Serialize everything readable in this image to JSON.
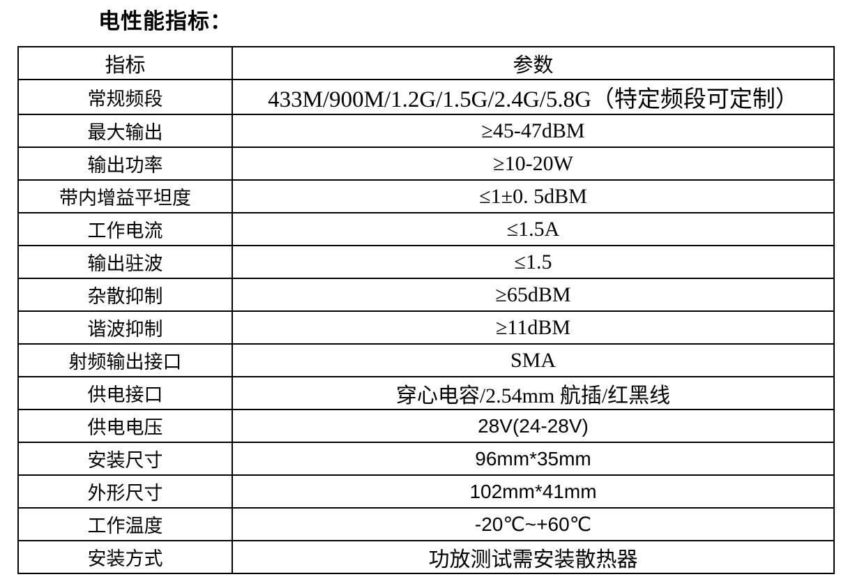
{
  "page": {
    "title": "电性能指标："
  },
  "table": {
    "header": {
      "indicator": "指标",
      "parameter": "参数"
    },
    "rows": [
      {
        "label": "常规频段",
        "value": "433M/900M/1.2G/1.5G/2.4G/5.8G（特定频段可定制）"
      },
      {
        "label": "最大输出",
        "value": "≥45-47dBM"
      },
      {
        "label": "输出功率",
        "value": "≥10-20W"
      },
      {
        "label": "带内增益平坦度",
        "value": "≤1±0. 5dBM"
      },
      {
        "label": "工作电流",
        "value": "≤1.5A"
      },
      {
        "label": "输出驻波",
        "value": "≤1.5"
      },
      {
        "label": "杂散抑制",
        "value": "≥65dBM"
      },
      {
        "label": "谐波抑制",
        "value": "≥11dBM"
      },
      {
        "label": "射频输出接口",
        "value": "SMA"
      },
      {
        "label": "供电接口",
        "value": "穿心电容/2.54mm 航插/红黑线"
      },
      {
        "label": "供电电压",
        "value": "28V(24-28V)"
      },
      {
        "label": "安装尺寸",
        "value": "96mm*35mm"
      },
      {
        "label": "外形尺寸",
        "value": "102mm*41mm"
      },
      {
        "label": "工作温度",
        "value": "-20℃~+60℃"
      },
      {
        "label": "安装方式",
        "value": "功放测试需安装散热器"
      }
    ]
  },
  "colors": {
    "text": "#000000",
    "border": "#000000",
    "background": "#ffffff"
  }
}
